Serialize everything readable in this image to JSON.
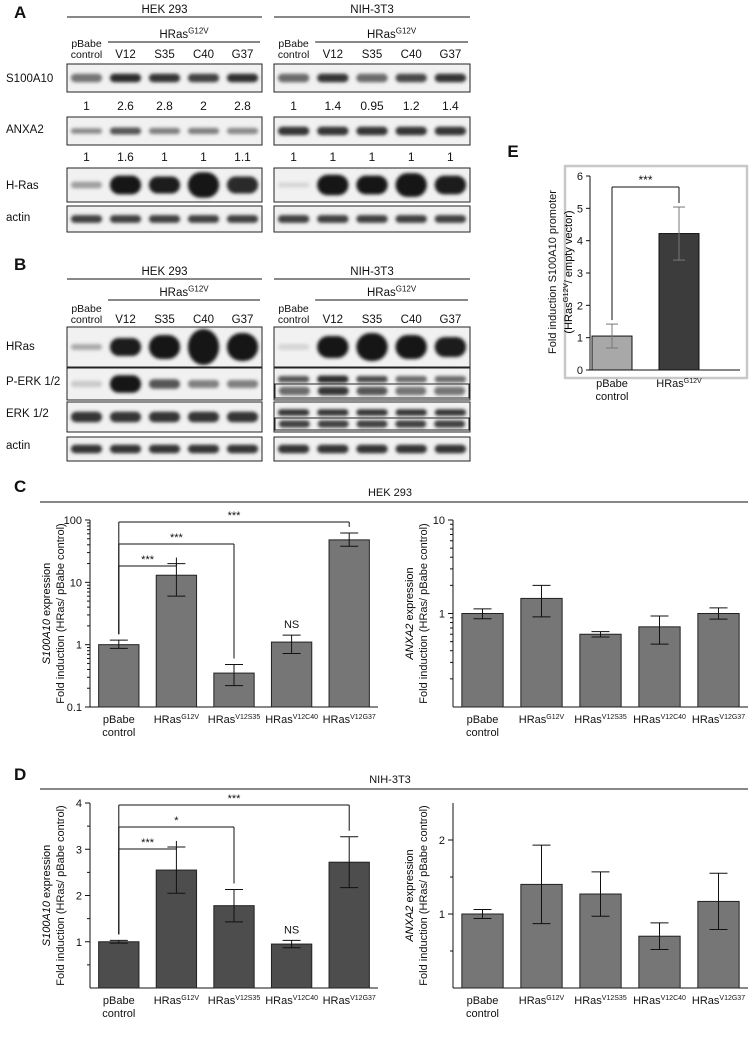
{
  "panels": {
    "A": {
      "letter": "A",
      "cell_lines": [
        "HEK 293",
        "NIH-3T3"
      ],
      "group_label": "HRas",
      "group_sup": "G12V",
      "control_label": [
        "pBabe",
        "control"
      ],
      "lanes": [
        "V12",
        "S35",
        "C40",
        "G37"
      ],
      "rows": [
        "S100A10",
        "ANXA2",
        "H-Ras",
        "actin"
      ],
      "quant_s100a10": {
        "hek": [
          "1",
          "2.6",
          "2.8",
          "2",
          "2.8"
        ],
        "nih": [
          "1",
          "1.4",
          "0.95",
          "1.2",
          "1.4"
        ]
      },
      "quant_anxa2": {
        "hek": [
          "1",
          "1.6",
          "1",
          "1",
          "1.1"
        ],
        "nih": [
          "1",
          "1",
          "1",
          "1",
          "1"
        ]
      }
    },
    "B": {
      "letter": "B",
      "cell_lines": [
        "HEK 293",
        "NIH-3T3"
      ],
      "group_label": "HRas",
      "group_sup": "G12V",
      "control_label": [
        "pBabe",
        "control"
      ],
      "lanes": [
        "V12",
        "S35",
        "C40",
        "G37"
      ],
      "rows": [
        "HRas",
        "P-ERK 1/2",
        "ERK 1/2",
        "actin"
      ]
    },
    "C": {
      "letter": "C",
      "title": "HEK 293"
    },
    "D": {
      "letter": "D",
      "title": "NIH-3T3"
    },
    "E": {
      "letter": "E"
    }
  },
  "chart_data": [
    {
      "id": "E",
      "type": "bar",
      "categories": [
        [
          "pBabe",
          "control"
        ],
        [
          "HRas",
          "G12V"
        ]
      ],
      "values": [
        1.05,
        4.22
      ],
      "errors": [
        0.37,
        0.82
      ],
      "bar_colors": [
        "#a8a8a8",
        "#3c3c3c"
      ],
      "ylabel": [
        "Fold induction S100A10 promoter",
        "(HRas",
        "G12V",
        "/ empty vector)"
      ],
      "ylim": [
        0,
        6
      ],
      "yticks": [
        "0",
        "1",
        "2",
        "3",
        "4",
        "5",
        "6"
      ],
      "significance": [
        {
          "from": 0,
          "to": 1,
          "label": "***"
        }
      ]
    },
    {
      "id": "C-left",
      "type": "bar",
      "scale": "log",
      "categories": [
        [
          "pBabe",
          "control"
        ],
        [
          "HRas",
          "G12V"
        ],
        [
          "HRas",
          "V12S35"
        ],
        [
          "HRas",
          "V12C40"
        ],
        [
          "HRas",
          "V12G37"
        ]
      ],
      "values": [
        1.0,
        13,
        0.35,
        1.1,
        48
      ],
      "err_low": [
        0.87,
        6,
        0.22,
        0.72,
        38
      ],
      "err_high": [
        1.18,
        20,
        0.48,
        1.42,
        62
      ],
      "bar_color": "#767676",
      "ylabel_italic": "S100A10",
      "ylabel_rest": " expression",
      "ylabel2": "Fold induction (HRas/ pBabe control)",
      "yticks": [
        "0.1",
        "1",
        "10",
        "100"
      ],
      "ylim": [
        0.1,
        100
      ],
      "significance": [
        {
          "from": 0,
          "to": 1,
          "label": "***"
        },
        {
          "from": 0,
          "to": 2,
          "label": "***"
        },
        {
          "from": 0,
          "to": 4,
          "label": "***"
        }
      ],
      "annotations": [
        {
          "bar": 3,
          "label": "NS"
        }
      ]
    },
    {
      "id": "C-right",
      "type": "bar",
      "scale": "log",
      "categories": [
        [
          "pBabe",
          "control"
        ],
        [
          "HRas",
          "G12V"
        ],
        [
          "HRas",
          "V12S35"
        ],
        [
          "HRas",
          "V12C40"
        ],
        [
          "HRas",
          "V12G37"
        ]
      ],
      "values": [
        1.0,
        1.45,
        0.6,
        0.72,
        1.0
      ],
      "err_low": [
        0.88,
        0.92,
        0.56,
        0.47,
        0.87
      ],
      "err_high": [
        1.12,
        2.0,
        0.64,
        0.94,
        1.15
      ],
      "bar_color": "#767676",
      "ylabel_italic": "ANXA2",
      "ylabel_rest": " expression",
      "ylabel2": "Fold induction (HRas/ pBabe control)",
      "yticks": [
        "1",
        "10"
      ],
      "ylim": [
        0.1,
        10
      ]
    },
    {
      "id": "D-left",
      "type": "bar",
      "categories": [
        [
          "pBabe",
          "control"
        ],
        [
          "HRas",
          "G12V"
        ],
        [
          "HRas",
          "V12S35"
        ],
        [
          "HRas",
          "V12C40"
        ],
        [
          "HRas",
          "V12G37"
        ]
      ],
      "values": [
        1.0,
        2.55,
        1.78,
        0.95,
        2.72
      ],
      "errors": [
        0.03,
        0.5,
        0.35,
        0.08,
        0.55
      ],
      "bar_color": "#4d4d4d",
      "ylabel_italic": "S100A10",
      "ylabel_rest": " expression",
      "ylabel2": "Fold induction (HRas/ pBabe control)",
      "yticks": [
        "1",
        "2",
        "3",
        "4"
      ],
      "ylim": [
        0,
        4
      ],
      "significance": [
        {
          "from": 0,
          "to": 1,
          "label": "***"
        },
        {
          "from": 0,
          "to": 2,
          "label": "*"
        },
        {
          "from": 0,
          "to": 4,
          "label": "***"
        }
      ],
      "annotations": [
        {
          "bar": 3,
          "label": "NS"
        }
      ]
    },
    {
      "id": "D-right",
      "type": "bar",
      "categories": [
        [
          "pBabe",
          "control"
        ],
        [
          "HRas",
          "G12V"
        ],
        [
          "HRas",
          "V12S35"
        ],
        [
          "HRas",
          "V12C40"
        ],
        [
          "HRas",
          "V12G37"
        ]
      ],
      "values": [
        1.0,
        1.4,
        1.27,
        0.7,
        1.17
      ],
      "errors": [
        0.06,
        0.53,
        0.3,
        0.18,
        0.38
      ],
      "bar_color": "#767676",
      "ylabel_italic": "ANXA2",
      "ylabel_rest": " expression",
      "ylabel2": "Fold induction (HRas/ pBabe control)",
      "yticks": [
        "1",
        "2"
      ],
      "ylim": [
        0,
        2.5
      ]
    }
  ]
}
